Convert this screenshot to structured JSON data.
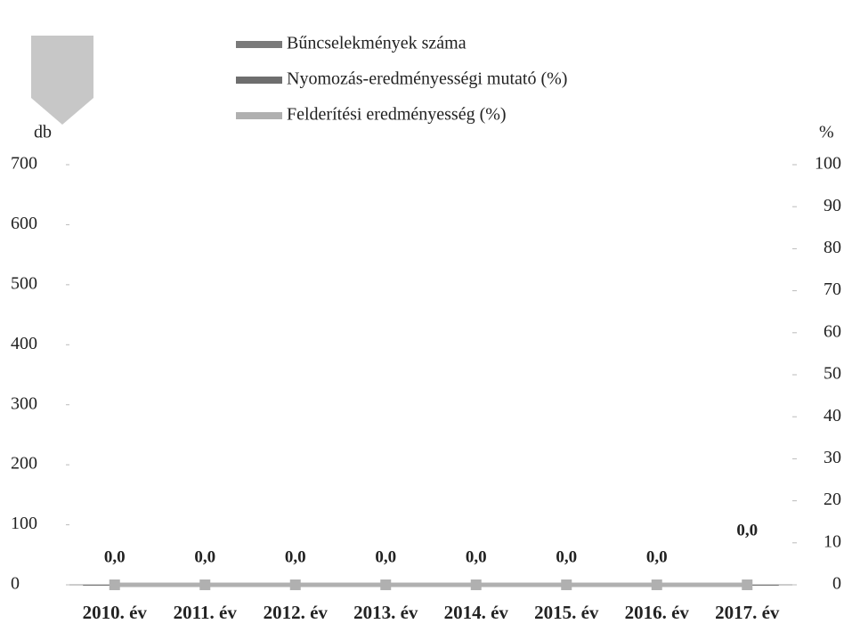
{
  "chart_data": {
    "type": "line",
    "categories": [
      "2010. év",
      "2011. év",
      "2012. év",
      "2013. év",
      "2014. év",
      "2015. év",
      "2016. év",
      "2017. év"
    ],
    "series": [
      {
        "name": "Bűncselekmények száma",
        "type": "bar",
        "color": "#7a7a7a",
        "values": [
          0,
          0,
          0,
          0,
          0,
          0,
          0,
          0
        ]
      },
      {
        "name": "Nyomozás-eredményességi mutató (%)",
        "type": "line",
        "axis": "y2",
        "color": "#6e6e6e",
        "values": [
          0,
          0,
          0,
          0,
          0,
          0,
          0,
          0
        ],
        "value_labels": [
          "0,0",
          "0,0",
          "0,0",
          "0,0",
          "0,0",
          "0,0",
          "0,0",
          "0,0"
        ]
      },
      {
        "name": "Felderítési eredményesség (%)",
        "type": "line",
        "axis": "y2",
        "color": "#b0b0b0",
        "marker": true,
        "values": [
          0,
          0,
          0,
          0,
          0,
          0,
          0,
          0
        ]
      }
    ],
    "ylabel": "db",
    "y2label": "%",
    "ylim": [
      0,
      700
    ],
    "yticks": [
      0,
      100,
      200,
      300,
      400,
      500,
      600,
      700
    ],
    "y2lim": [
      0,
      100
    ],
    "y2ticks": [
      0,
      10,
      20,
      30,
      40,
      50,
      60,
      70,
      80,
      90,
      100
    ]
  }
}
